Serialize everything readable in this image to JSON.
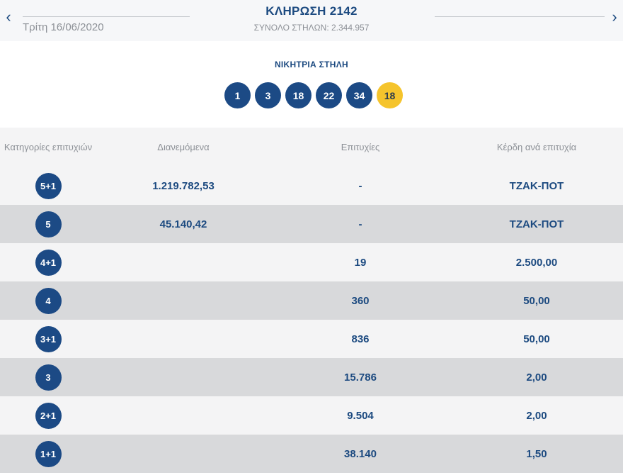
{
  "header": {
    "date": "Τρίτη 16/06/2020",
    "draw_title": "ΚΛΗΡΩΣΗ 2142",
    "columns_total": "ΣΥΝΟΛΟ ΣΤΗΛΩΝ: 2.344.957",
    "prev_icon": "‹",
    "next_icon": "›"
  },
  "winning": {
    "title": "ΝΙΚΗΤΡΙΑ ΣΤΗΛΗ",
    "numbers": [
      "1",
      "3",
      "18",
      "22",
      "34"
    ],
    "joker": "18"
  },
  "colors": {
    "brand": "#1c4a85",
    "joker": "#f5c42c",
    "row_light": "#f4f4f5",
    "row_dark": "#d8d9db"
  },
  "table": {
    "headers": [
      "Κατηγορίες επιτυχιών",
      "Διανεμόμενα",
      "Επιτυχίες",
      "Κέρδη ανά επιτυχία"
    ],
    "rows": [
      {
        "category": "5+1",
        "distributed": "1.219.782,53",
        "winners": "-",
        "prize": "ΤΖΑΚ-ΠΟΤ"
      },
      {
        "category": "5",
        "distributed": "45.140,42",
        "winners": "-",
        "prize": "ΤΖΑΚ-ΠΟΤ"
      },
      {
        "category": "4+1",
        "distributed": "",
        "winners": "19",
        "prize": "2.500,00"
      },
      {
        "category": "4",
        "distributed": "",
        "winners": "360",
        "prize": "50,00"
      },
      {
        "category": "3+1",
        "distributed": "",
        "winners": "836",
        "prize": "50,00"
      },
      {
        "category": "3",
        "distributed": "",
        "winners": "15.786",
        "prize": "2,00"
      },
      {
        "category": "2+1",
        "distributed": "",
        "winners": "9.504",
        "prize": "2,00"
      },
      {
        "category": "1+1",
        "distributed": "",
        "winners": "38.140",
        "prize": "1,50"
      }
    ]
  }
}
